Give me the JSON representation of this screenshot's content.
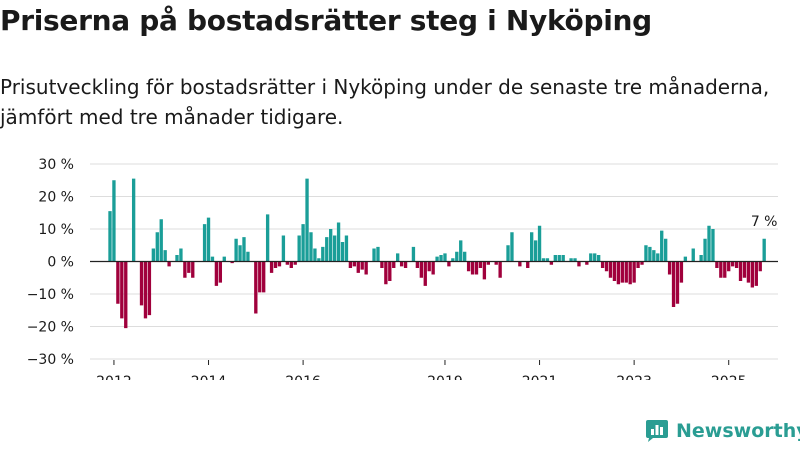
{
  "title": "Priserna på bostadsrätter steg i Nyköping",
  "subtitle": "Prisutveckling för bostadsrätter i Nyköping under de senaste tre månaderna, jämfört med tre månader tidigare.",
  "brand": "Newsworthy",
  "colors": {
    "positive": "#1a9e98",
    "negative": "#a0003c",
    "grid": "#dddddd",
    "zero": "#222222",
    "text": "#1a1a1a"
  },
  "chart_data": {
    "type": "bar",
    "title": "Prisutveckling för bostadsrätter i Nyköping",
    "xlabel": "",
    "ylabel": "",
    "ylim": [
      -30,
      30
    ],
    "yticks": [
      -30,
      -20,
      -10,
      0,
      10,
      20,
      30
    ],
    "ytick_suffix": " %",
    "xticks": [
      2012,
      2014,
      2016,
      2019,
      2021,
      2023,
      2025
    ],
    "start": "2011-12",
    "frequency": "monthly",
    "last_label": "7 %",
    "values": [
      15.5,
      25,
      -13,
      -17.5,
      -20.5,
      0,
      25.5,
      0,
      -13.5,
      -17.5,
      -16.5,
      4,
      9,
      13,
      3.5,
      -1.5,
      0,
      2,
      4,
      -5,
      -3.5,
      -5,
      0,
      0,
      11.5,
      13.5,
      1.5,
      -7.5,
      -6.5,
      1.5,
      0,
      -0.5,
      7,
      5,
      7.5,
      3,
      0,
      -16,
      -9.5,
      -9.5,
      14.5,
      -3.5,
      -2,
      -1.5,
      8,
      -1,
      -2,
      -1,
      8,
      11.5,
      25.5,
      9,
      4,
      1,
      4.5,
      7.5,
      10,
      8,
      12,
      6,
      8,
      -2,
      -1.5,
      -3.5,
      -2.5,
      -4,
      0,
      4,
      4.5,
      -2,
      -7,
      -6,
      -2,
      2.5,
      -1.5,
      -2,
      0,
      4.5,
      -2,
      -5,
      -7.5,
      -3,
      -4,
      1.5,
      2,
      2.5,
      -1.5,
      1,
      3,
      6.5,
      3,
      -3,
      -4,
      -4,
      -2,
      -5.5,
      -1,
      0,
      -1,
      -5,
      0,
      5,
      9,
      0,
      -1.5,
      0,
      -2,
      9,
      6.5,
      11,
      1,
      1,
      -1,
      2,
      2,
      2,
      0,
      1,
      1,
      -1.5,
      0,
      -1,
      2.5,
      2.5,
      2,
      -2,
      -3,
      -5,
      -6,
      -7,
      -6.5,
      -6.5,
      -7,
      -6.5,
      -2,
      -1,
      5,
      4.5,
      3.5,
      2.5,
      9.5,
      7,
      -4,
      -14,
      -13,
      -6.5,
      1.5,
      0,
      4,
      0,
      2,
      7,
      11,
      10,
      -2,
      -5,
      -5,
      -3,
      -1.5,
      -2,
      -6,
      -5,
      -6.5,
      -8,
      -7.5,
      -3,
      7
    ]
  }
}
